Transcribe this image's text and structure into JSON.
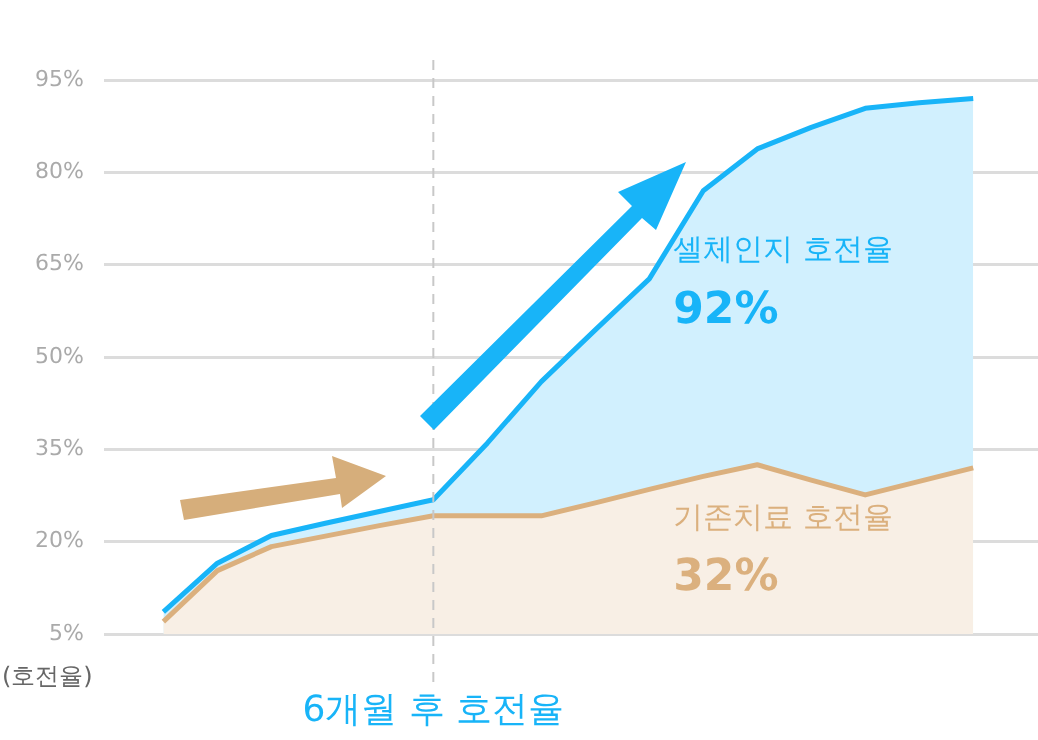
{
  "chart_data": {
    "type": "area",
    "ylabel": "(호전율)",
    "categories": [
      null,
      null,
      null,
      null,
      null,
      "6개월 후 호전율",
      null,
      null,
      null,
      null,
      null,
      null,
      null,
      null,
      null,
      null
    ],
    "ylim": [
      5,
      95
    ],
    "yticks": [
      {
        "value": 5,
        "label": "5%"
      },
      {
        "value": 20,
        "label": "20%"
      },
      {
        "value": 35,
        "label": "35%"
      },
      {
        "value": 50,
        "label": "50%"
      },
      {
        "value": 65,
        "label": "65%"
      },
      {
        "value": 80,
        "label": "80%"
      },
      {
        "value": 95,
        "label": "95%"
      }
    ],
    "grid": "y",
    "legend": false,
    "marker": "none",
    "line_style": "solid",
    "ref_lines": [
      {
        "axis": "x",
        "value": "6개월 후 호전율",
        "color": "#c8c8c8",
        "line_style": "dashed"
      }
    ],
    "series": [
      {
        "name": "셀체인지 호전율",
        "color": "#18b4f8",
        "values": [
          8.6,
          16.5,
          21,
          23,
          24.9,
          26.8,
          36,
          46,
          54.4,
          62.7,
          77,
          83.8,
          87.3,
          90.4,
          91.3,
          92
        ]
      },
      {
        "name": "기존치료 호전율",
        "color": "#dbb07e",
        "values": [
          7,
          15.3,
          19.2,
          20.9,
          22.6,
          24.2,
          24.2,
          24.2,
          26.3,
          28.5,
          30.6,
          32.5,
          30,
          27.6,
          29.8,
          32
        ]
      }
    ],
    "annotations": [
      "92%",
      "32%"
    ]
  }
}
